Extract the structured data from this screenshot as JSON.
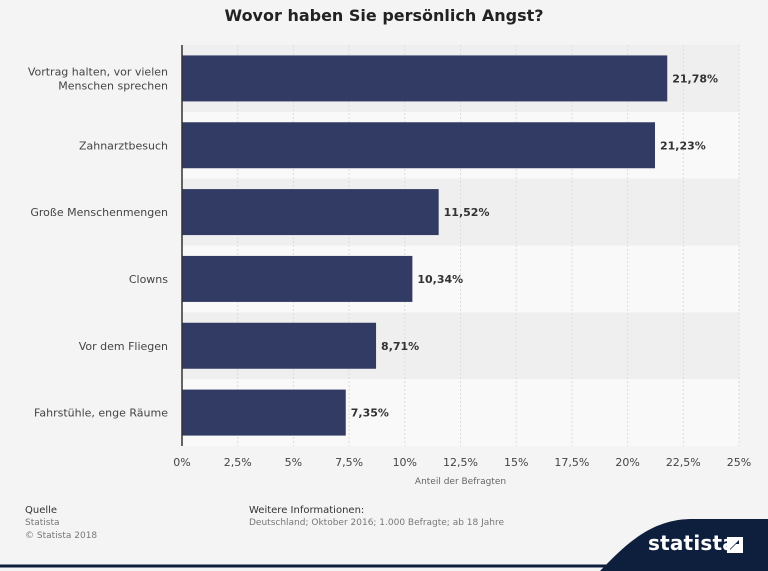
{
  "chart_data": {
    "type": "bar",
    "orientation": "horizontal",
    "title": "Wovor haben Sie persönlich Angst?",
    "categories": [
      [
        "Vortrag halten, vor vielen",
        "Menschen sprechen"
      ],
      [
        "Zahnarztbesuch"
      ],
      [
        "Große Menschenmengen"
      ],
      [
        "Clowns"
      ],
      [
        "Vor dem Fliegen"
      ],
      [
        "Fahrstühle, enge Räume"
      ]
    ],
    "values": [
      21.78,
      21.23,
      11.52,
      10.34,
      8.71,
      7.35
    ],
    "value_labels": [
      "21,78%",
      "21,23%",
      "11,52%",
      "10,34%",
      "8,71%",
      "7,35%"
    ],
    "xlabel": "Anteil der Befragten",
    "xlim": [
      0,
      25
    ],
    "ticks": [
      0,
      2.5,
      5,
      7.5,
      10,
      12.5,
      15,
      17.5,
      20,
      22.5,
      25
    ],
    "tick_labels": [
      "0%",
      "2,5%",
      "5%",
      "7,5%",
      "10%",
      "12,5%",
      "15%",
      "17,5%",
      "20%",
      "22,5%",
      "25%"
    ],
    "bar_color": "#323b63",
    "grid": true
  },
  "footer": {
    "source_title": "Quelle",
    "source_lines": [
      "Statista",
      "© Statista 2018"
    ],
    "info_title": "Weitere Informationen:",
    "info_text": "Deutschland; Oktober 2016; 1.000 Befragte; ab 18 Jahre"
  },
  "logo": {
    "text": "statista",
    "icon": "statista-arrow-icon",
    "background": "#0e1f3d"
  }
}
